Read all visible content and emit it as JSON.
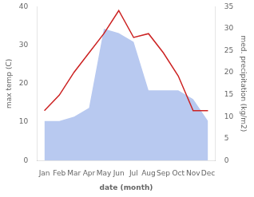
{
  "chart_data": {
    "type": "line",
    "xlabel": "date (month)",
    "ylabel": "max temp (C)",
    "y2label": "med. precipitation (kg/m2)",
    "categories": [
      "Jan",
      "Feb",
      "Mar",
      "Apr",
      "May",
      "Jun",
      "Jul",
      "Aug",
      "Sep",
      "Oct",
      "Nov",
      "Dec"
    ],
    "series": [
      {
        "type": "area",
        "axis": "y2",
        "color": "#b8c9f0",
        "values": [
          9,
          9,
          10,
          12,
          30,
          29,
          27,
          16,
          16,
          16,
          14,
          9
        ]
      },
      {
        "type": "line",
        "color": "#cc2222",
        "values": [
          13,
          17,
          23,
          28,
          33,
          39,
          32,
          33,
          28,
          22,
          13,
          13
        ]
      }
    ],
    "ylim": [
      0,
      40
    ],
    "yticks": [
      0,
      10,
      20,
      30,
      40
    ],
    "y2lim": [
      0,
      35
    ],
    "y2ticks": [
      0,
      5,
      10,
      15,
      20,
      25,
      30,
      35
    ],
    "grid": false
  }
}
